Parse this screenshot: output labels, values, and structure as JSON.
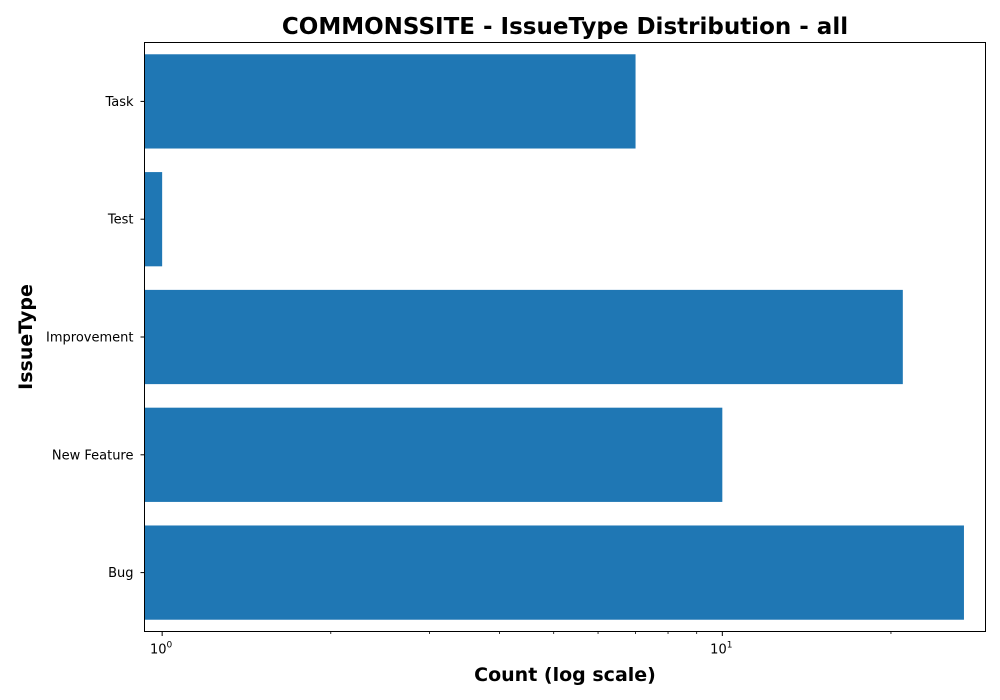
{
  "chart_data": {
    "type": "bar",
    "orientation": "horizontal",
    "title": "COMMONSSITE - IssueType Distribution - all",
    "xlabel": "Count (log scale)",
    "ylabel": "IssueType",
    "xscale": "log",
    "xlim": [
      0.93,
      29.5
    ],
    "categories": [
      "Bug",
      "New Feature",
      "Improvement",
      "Test",
      "Task"
    ],
    "values": [
      27,
      10,
      21,
      1,
      7
    ],
    "x_major_ticks": [
      {
        "value": 1,
        "base": "10",
        "exp": "0"
      },
      {
        "value": 10,
        "base": "10",
        "exp": "1"
      }
    ],
    "grid": false,
    "legend": "none",
    "bar_color": "#1f77b4"
  }
}
